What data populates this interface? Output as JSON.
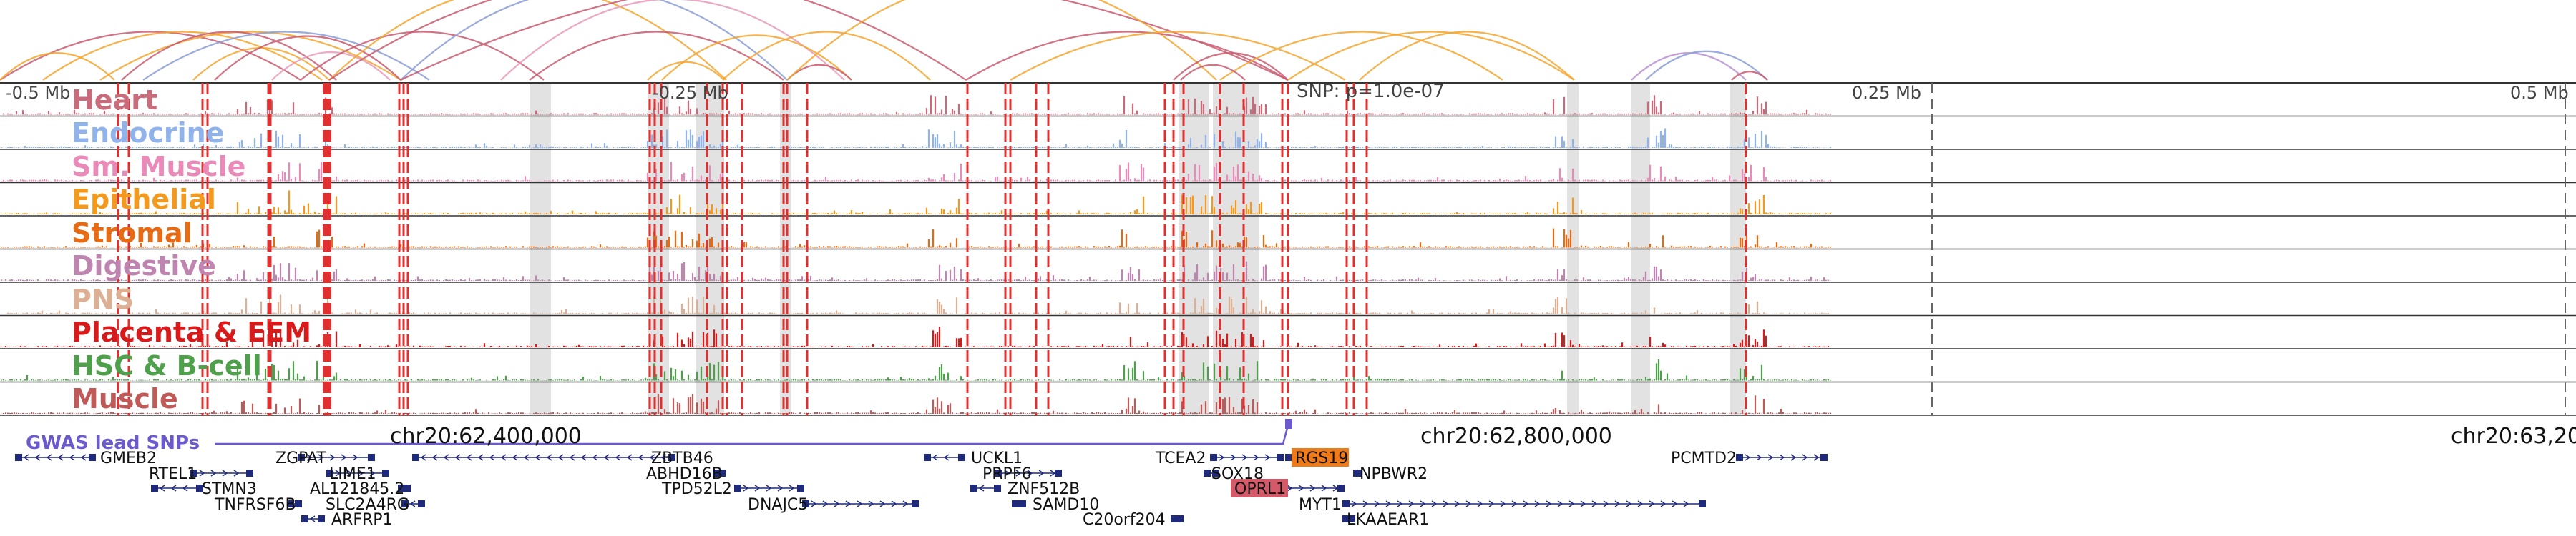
{
  "colors": {
    "arcs": [
      "#f4a52e",
      "#c95a6e",
      "#b98fd0",
      "#8a9ed6",
      "#e89ab8"
    ],
    "highlight_fill": "#d8d8d8",
    "snp_line": "#e03030",
    "gene": "#1f2a7a",
    "gwas": "#6a5acd",
    "separator": "#333333"
  },
  "axis": {
    "labels": [
      "-0.5 Mb",
      "-0.25 Mb",
      "0.25 Mb",
      "0.5 Mb"
    ],
    "snp_label": "SNP: p=1.0e-07"
  },
  "tracks": [
    {
      "name": "Heart",
      "color": "#c96b7a"
    },
    {
      "name": "Endocrine",
      "color": "#8fb3ea"
    },
    {
      "name": "Sm. Muscle",
      "color": "#e98ab8"
    },
    {
      "name": "Epithelial",
      "color": "#f39a1e"
    },
    {
      "name": "Stromal",
      "color": "#e86a12"
    },
    {
      "name": "Digestive",
      "color": "#c084b0"
    },
    {
      "name": "PNS",
      "color": "#ddb094"
    },
    {
      "name": "Placenta & EEM",
      "color": "#d81a1a"
    },
    {
      "name": "HSC & B-cell",
      "color": "#4ea04a"
    },
    {
      "name": "Muscle",
      "color": "#c05a58"
    }
  ],
  "gwas_label": "GWAS lead SNPs",
  "coordinates": [
    "chr20:62,400,000",
    "chr20:62,800,000",
    "chr20:63,20"
  ],
  "genes": [
    {
      "name": "GMEB2",
      "highlight": ""
    },
    {
      "name": "ZGPAT",
      "highlight": ""
    },
    {
      "name": "RTEL1",
      "highlight": ""
    },
    {
      "name": "LIME1",
      "highlight": ""
    },
    {
      "name": "STMN3",
      "highlight": ""
    },
    {
      "name": "AL121845.2",
      "highlight": ""
    },
    {
      "name": "TNFRSF6B",
      "highlight": ""
    },
    {
      "name": "SLC2A4RG",
      "highlight": ""
    },
    {
      "name": "ARFRP1",
      "highlight": ""
    },
    {
      "name": "ZBTB46",
      "highlight": ""
    },
    {
      "name": "ABHD16B",
      "highlight": ""
    },
    {
      "name": "TPD52L2",
      "highlight": ""
    },
    {
      "name": "DNAJC5",
      "highlight": ""
    },
    {
      "name": "UCKL1",
      "highlight": ""
    },
    {
      "name": "PRPF6",
      "highlight": ""
    },
    {
      "name": "ZNF512B",
      "highlight": ""
    },
    {
      "name": "SAMD10",
      "highlight": ""
    },
    {
      "name": "C20orf204",
      "highlight": ""
    },
    {
      "name": "TCEA2",
      "highlight": ""
    },
    {
      "name": "RGS19",
      "highlight": "#f07a18"
    },
    {
      "name": "SOX18",
      "highlight": ""
    },
    {
      "name": "NPBWR2",
      "highlight": ""
    },
    {
      "name": "OPRL1",
      "highlight": "#d45a6a"
    },
    {
      "name": "MYT1",
      "highlight": ""
    },
    {
      "name": "LKAAEAR1",
      "highlight": ""
    },
    {
      "name": "PCMTD2",
      "highlight": ""
    }
  ]
}
